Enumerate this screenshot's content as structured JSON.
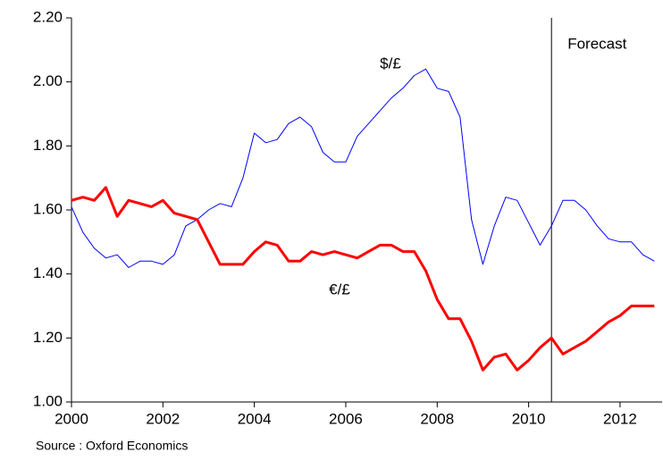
{
  "chart_data": {
    "type": "line",
    "x": [
      2000,
      2000.25,
      2000.5,
      2000.75,
      2001,
      2001.25,
      2001.5,
      2001.75,
      2002,
      2002.25,
      2002.5,
      2002.75,
      2003,
      2003.25,
      2003.5,
      2003.75,
      2004,
      2004.25,
      2004.5,
      2004.75,
      2005,
      2005.25,
      2005.5,
      2005.75,
      2006,
      2006.25,
      2006.5,
      2006.75,
      2007,
      2007.25,
      2007.5,
      2007.75,
      2008,
      2008.25,
      2008.5,
      2008.75,
      2009,
      2009.25,
      2009.5,
      2009.75,
      2010,
      2010.25,
      2010.5,
      2010.75,
      2011,
      2011.25,
      2011.5,
      2011.75,
      2012,
      2012.25,
      2012.5,
      2012.75
    ],
    "series": [
      {
        "name": "$/£",
        "color": "#0000ff",
        "width": 1,
        "values": [
          1.61,
          1.53,
          1.48,
          1.45,
          1.46,
          1.42,
          1.44,
          1.44,
          1.43,
          1.46,
          1.55,
          1.57,
          1.6,
          1.62,
          1.61,
          1.7,
          1.84,
          1.81,
          1.82,
          1.87,
          1.89,
          1.86,
          1.78,
          1.75,
          1.75,
          1.83,
          1.87,
          1.91,
          1.95,
          1.98,
          2.02,
          2.04,
          1.98,
          1.97,
          1.89,
          1.57,
          1.43,
          1.55,
          1.64,
          1.63,
          1.56,
          1.49,
          1.55,
          1.63,
          1.63,
          1.6,
          1.55,
          1.51,
          1.5,
          1.5,
          1.46,
          1.44
        ]
      },
      {
        "name": "€/£",
        "color": "#ff0000",
        "width": 3,
        "values": [
          1.63,
          1.64,
          1.63,
          1.67,
          1.58,
          1.63,
          1.62,
          1.61,
          1.63,
          1.59,
          1.58,
          1.57,
          1.5,
          1.43,
          1.43,
          1.43,
          1.47,
          1.5,
          1.49,
          1.44,
          1.44,
          1.47,
          1.46,
          1.47,
          1.46,
          1.45,
          1.47,
          1.49,
          1.49,
          1.47,
          1.47,
          1.41,
          1.32,
          1.26,
          1.26,
          1.19,
          1.1,
          1.14,
          1.15,
          1.1,
          1.13,
          1.17,
          1.2,
          1.15,
          1.17,
          1.19,
          1.22,
          1.25,
          1.27,
          1.3,
          1.3,
          1.3
        ]
      }
    ],
    "xlim": [
      2000,
      2012.92
    ],
    "xticks": [
      2000,
      2002,
      2004,
      2006,
      2008,
      2010,
      2012
    ],
    "ylim": [
      1.0,
      2.2
    ],
    "yticks": [
      {
        "value": 1.0,
        "label": "1.00"
      },
      {
        "value": 1.2,
        "label": "1.20"
      },
      {
        "value": 1.4,
        "label": "1.40"
      },
      {
        "value": 1.6,
        "label": "1.60"
      },
      {
        "value": 1.8,
        "label": "1.80"
      },
      {
        "value": 2.0,
        "label": "2.00"
      },
      {
        "value": 2.2,
        "label": "2.20"
      }
    ],
    "forecast_line": 2010.5,
    "forecast_label": "Forecast",
    "source": "Source : Oxford Economics"
  }
}
